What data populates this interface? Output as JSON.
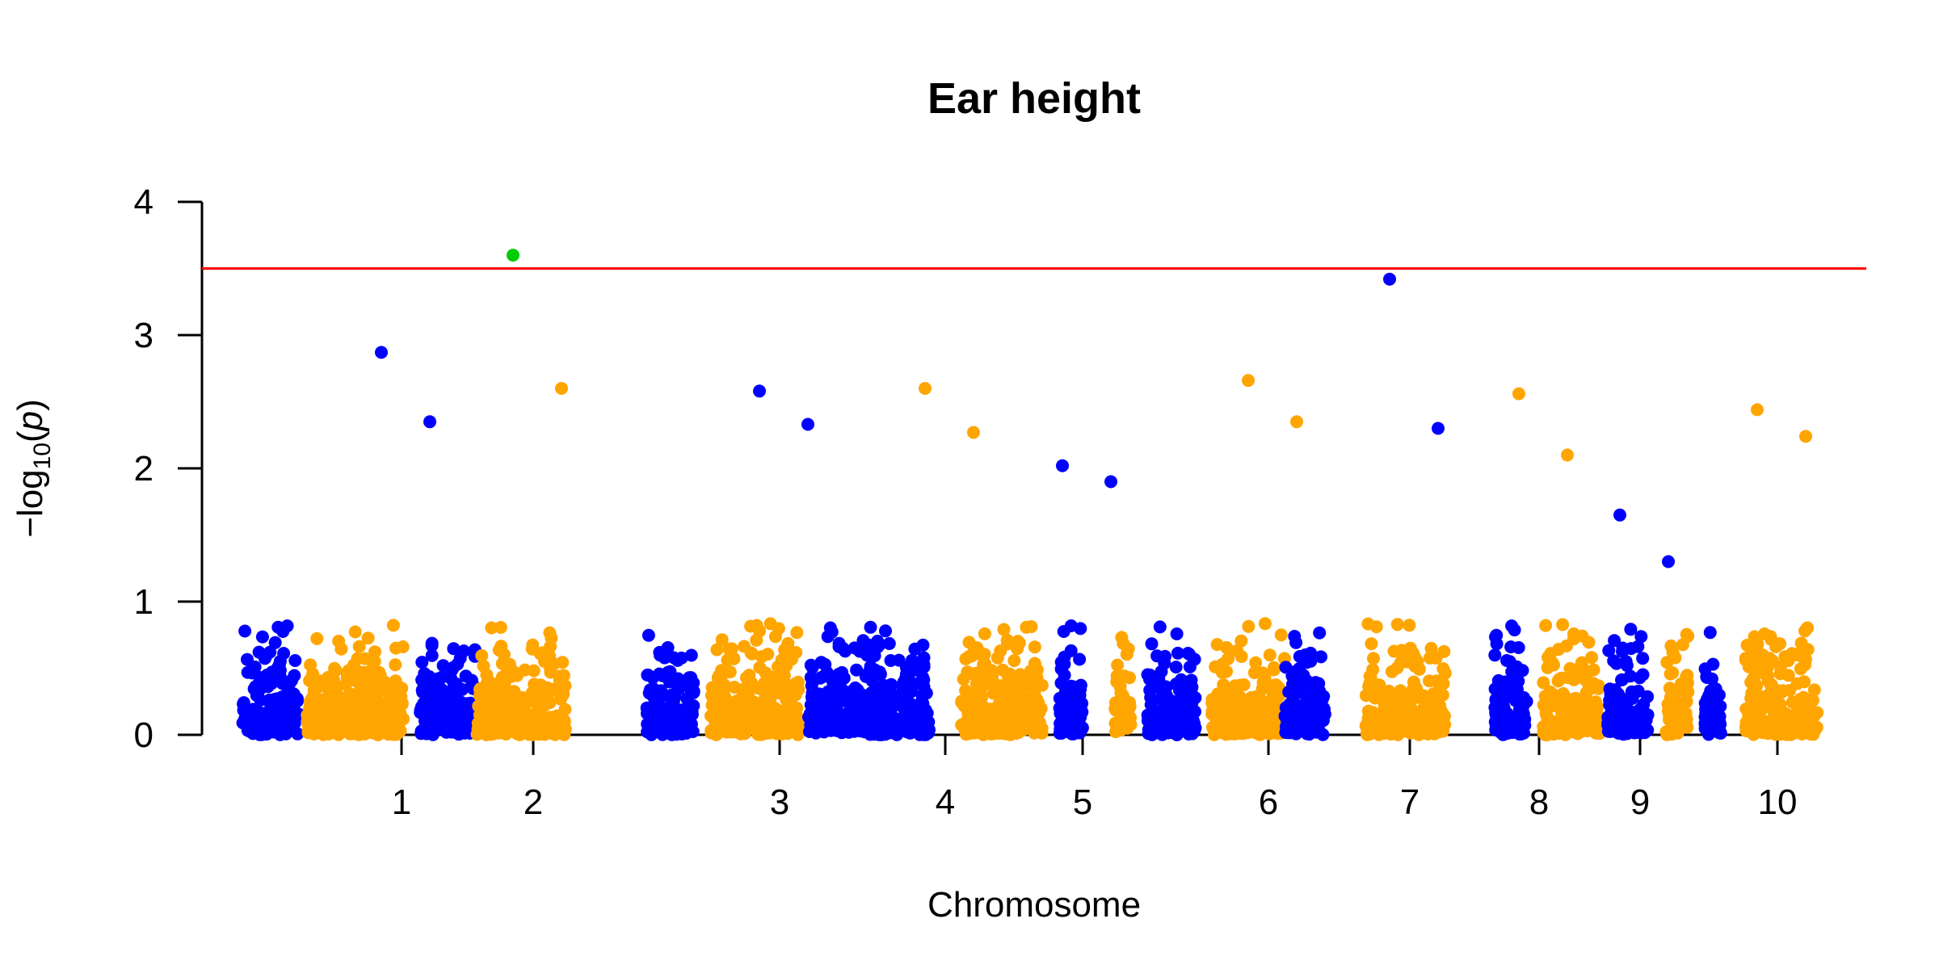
{
  "chart_data": {
    "type": "scatter",
    "title": "Ear height",
    "xlabel": "Chromosome",
    "ylabel_prefix": "−log",
    "ylabel_subscript": "10",
    "ylabel_var": "p",
    "ylim": [
      0,
      4
    ],
    "yticks": [
      "0",
      "1",
      "2",
      "3",
      "4"
    ],
    "threshold": 3.5,
    "grid": false,
    "colors": {
      "odd_chromosome": "#0000ff",
      "even_chromosome": "#ffa500",
      "significant": "#00cc00",
      "threshold_line": "#ff0000"
    },
    "chromosomes": [
      "1",
      "2",
      "3",
      "4",
      "5",
      "6",
      "7",
      "8",
      "9",
      "10"
    ],
    "notable_points": [
      {
        "chromosome": "1",
        "value": 2.87
      },
      {
        "chromosome": "1",
        "value": 2.35
      },
      {
        "chromosome": "2",
        "value": 3.6,
        "significant": true
      },
      {
        "chromosome": "2",
        "value": 2.6
      },
      {
        "chromosome": "3",
        "value": 2.58
      },
      {
        "chromosome": "3",
        "value": 2.33
      },
      {
        "chromosome": "4",
        "value": 2.6
      },
      {
        "chromosome": "4",
        "value": 2.27
      },
      {
        "chromosome": "5",
        "value": 2.02
      },
      {
        "chromosome": "5",
        "value": 1.9
      },
      {
        "chromosome": "6",
        "value": 2.66
      },
      {
        "chromosome": "6",
        "value": 2.35
      },
      {
        "chromosome": "7",
        "value": 3.42
      },
      {
        "chromosome": "7",
        "value": 2.3
      },
      {
        "chromosome": "8",
        "value": 2.56
      },
      {
        "chromosome": "8",
        "value": 2.1
      },
      {
        "chromosome": "9",
        "value": 1.65
      },
      {
        "chromosome": "9",
        "value": 1.3
      },
      {
        "chromosome": "10",
        "value": 2.44
      },
      {
        "chromosome": "10",
        "value": 2.24
      }
    ]
  }
}
